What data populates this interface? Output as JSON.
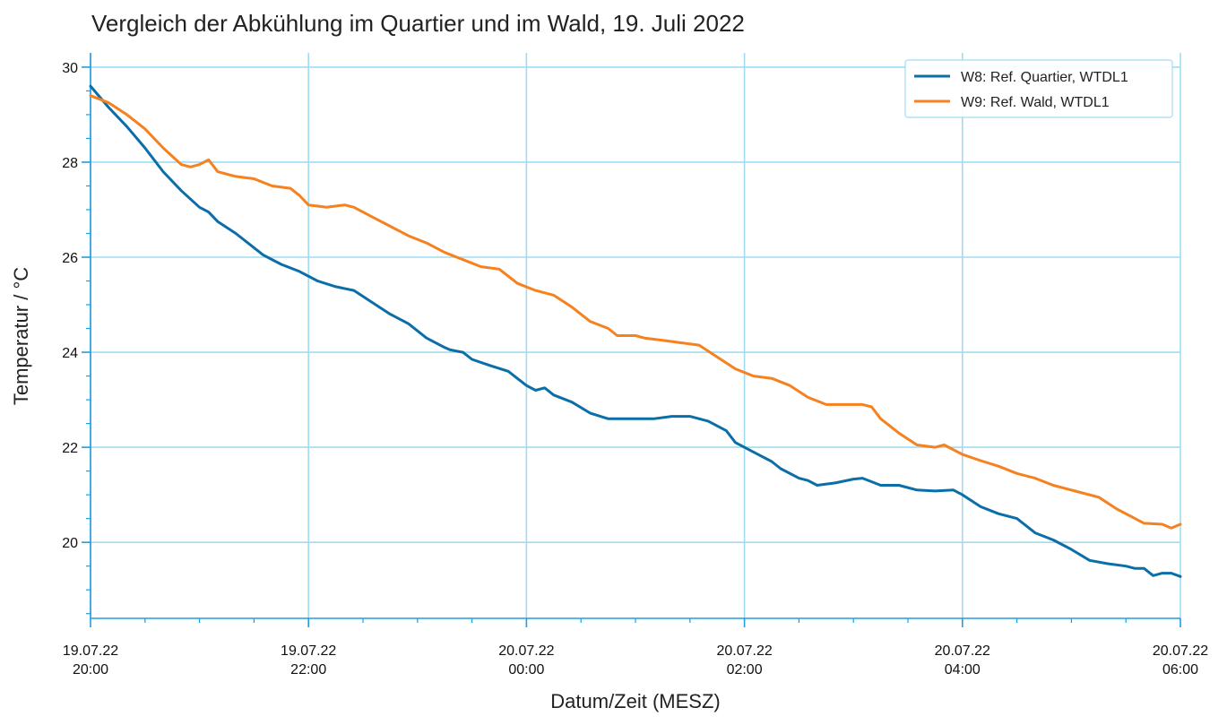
{
  "chart_data": {
    "type": "line",
    "title": "Vergleich der Abkühlung im Quartier und im Wald, 19. Juli 2022",
    "xlabel": "Datum/Zeit (MESZ)",
    "ylabel": "Temperatur / °C",
    "xlim": [
      0,
      600
    ],
    "ylim": [
      18.4,
      30.3
    ],
    "grid": true,
    "legend_position": "top-right",
    "x_unit": "minutes since 19.07.22 20:00",
    "x_ticks": [
      {
        "value": 0,
        "line1": "19.07.22",
        "line2": "20:00"
      },
      {
        "value": 120,
        "line1": "19.07.22",
        "line2": "22:00"
      },
      {
        "value": 240,
        "line1": "20.07.22",
        "line2": "00:00"
      },
      {
        "value": 360,
        "line1": "20.07.22",
        "line2": "02:00"
      },
      {
        "value": 480,
        "line1": "20.07.22",
        "line2": "04:00"
      },
      {
        "value": 600,
        "line1": "20.07.22",
        "line2": "06:00"
      }
    ],
    "y_ticks": [
      {
        "value": 20,
        "label": "20"
      },
      {
        "value": 22,
        "label": "22"
      },
      {
        "value": 24,
        "label": "24"
      },
      {
        "value": 26,
        "label": "26"
      },
      {
        "value": 28,
        "label": "28"
      },
      {
        "value": 30,
        "label": "30"
      }
    ],
    "colors": {
      "grid": "#9fdcf4",
      "axis": "#1e9fe0",
      "legend_border": "#9fdcf4"
    },
    "series": [
      {
        "name": "W8: Ref. Quartier, WTDL1",
        "color": "#0b6ea8",
        "points": [
          [
            0,
            29.6
          ],
          [
            10,
            29.15
          ],
          [
            20,
            28.75
          ],
          [
            30,
            28.3
          ],
          [
            40,
            27.8
          ],
          [
            50,
            27.4
          ],
          [
            60,
            27.05
          ],
          [
            65,
            26.95
          ],
          [
            70,
            26.75
          ],
          [
            80,
            26.5
          ],
          [
            90,
            26.2
          ],
          [
            95,
            26.05
          ],
          [
            105,
            25.85
          ],
          [
            115,
            25.7
          ],
          [
            125,
            25.5
          ],
          [
            135,
            25.38
          ],
          [
            145,
            25.3
          ],
          [
            155,
            25.05
          ],
          [
            165,
            24.8
          ],
          [
            175,
            24.6
          ],
          [
            185,
            24.3
          ],
          [
            195,
            24.1
          ],
          [
            198,
            24.05
          ],
          [
            205,
            24.0
          ],
          [
            210,
            23.85
          ],
          [
            220,
            23.72
          ],
          [
            230,
            23.6
          ],
          [
            240,
            23.3
          ],
          [
            245,
            23.2
          ],
          [
            250,
            23.25
          ],
          [
            255,
            23.1
          ],
          [
            265,
            22.95
          ],
          [
            275,
            22.72
          ],
          [
            285,
            22.6
          ],
          [
            300,
            22.6
          ],
          [
            310,
            22.6
          ],
          [
            320,
            22.65
          ],
          [
            330,
            22.65
          ],
          [
            340,
            22.55
          ],
          [
            350,
            22.35
          ],
          [
            355,
            22.1
          ],
          [
            365,
            21.9
          ],
          [
            375,
            21.7
          ],
          [
            380,
            21.55
          ],
          [
            390,
            21.35
          ],
          [
            395,
            21.3
          ],
          [
            400,
            21.2
          ],
          [
            410,
            21.25
          ],
          [
            420,
            21.33
          ],
          [
            425,
            21.35
          ],
          [
            435,
            21.2
          ],
          [
            445,
            21.2
          ],
          [
            455,
            21.1
          ],
          [
            465,
            21.08
          ],
          [
            475,
            21.1
          ],
          [
            480,
            21.0
          ],
          [
            490,
            20.75
          ],
          [
            500,
            20.6
          ],
          [
            510,
            20.5
          ],
          [
            520,
            20.2
          ],
          [
            530,
            20.05
          ],
          [
            540,
            19.85
          ],
          [
            550,
            19.62
          ],
          [
            560,
            19.55
          ],
          [
            570,
            19.5
          ],
          [
            575,
            19.45
          ],
          [
            580,
            19.45
          ],
          [
            585,
            19.3
          ],
          [
            590,
            19.35
          ],
          [
            595,
            19.35
          ],
          [
            600,
            19.28
          ]
        ]
      },
      {
        "name": "W9: Ref. Wald, WTDL1",
        "color": "#f5811f",
        "points": [
          [
            0,
            29.4
          ],
          [
            10,
            29.25
          ],
          [
            20,
            29.0
          ],
          [
            30,
            28.7
          ],
          [
            40,
            28.3
          ],
          [
            50,
            27.95
          ],
          [
            55,
            27.9
          ],
          [
            60,
            27.95
          ],
          [
            65,
            28.05
          ],
          [
            70,
            27.8
          ],
          [
            80,
            27.7
          ],
          [
            90,
            27.65
          ],
          [
            100,
            27.5
          ],
          [
            110,
            27.45
          ],
          [
            115,
            27.3
          ],
          [
            120,
            27.1
          ],
          [
            130,
            27.05
          ],
          [
            140,
            27.1
          ],
          [
            145,
            27.05
          ],
          [
            155,
            26.85
          ],
          [
            165,
            26.65
          ],
          [
            175,
            26.45
          ],
          [
            185,
            26.3
          ],
          [
            195,
            26.1
          ],
          [
            205,
            25.95
          ],
          [
            215,
            25.8
          ],
          [
            225,
            25.75
          ],
          [
            230,
            25.6
          ],
          [
            235,
            25.45
          ],
          [
            245,
            25.3
          ],
          [
            255,
            25.2
          ],
          [
            265,
            24.95
          ],
          [
            275,
            24.65
          ],
          [
            285,
            24.5
          ],
          [
            290,
            24.35
          ],
          [
            300,
            24.35
          ],
          [
            305,
            24.3
          ],
          [
            315,
            24.25
          ],
          [
            325,
            24.2
          ],
          [
            335,
            24.15
          ],
          [
            345,
            23.9
          ],
          [
            355,
            23.65
          ],
          [
            365,
            23.5
          ],
          [
            375,
            23.45
          ],
          [
            385,
            23.3
          ],
          [
            395,
            23.05
          ],
          [
            405,
            22.9
          ],
          [
            415,
            22.9
          ],
          [
            425,
            22.9
          ],
          [
            430,
            22.85
          ],
          [
            435,
            22.6
          ],
          [
            445,
            22.3
          ],
          [
            455,
            22.05
          ],
          [
            465,
            22.0
          ],
          [
            470,
            22.05
          ],
          [
            480,
            21.85
          ],
          [
            490,
            21.72
          ],
          [
            500,
            21.6
          ],
          [
            510,
            21.45
          ],
          [
            520,
            21.35
          ],
          [
            530,
            21.2
          ],
          [
            535,
            21.15
          ],
          [
            545,
            21.05
          ],
          [
            555,
            20.95
          ],
          [
            565,
            20.7
          ],
          [
            575,
            20.5
          ],
          [
            580,
            20.4
          ],
          [
            590,
            20.38
          ],
          [
            595,
            20.3
          ],
          [
            600,
            20.38
          ]
        ]
      }
    ]
  }
}
